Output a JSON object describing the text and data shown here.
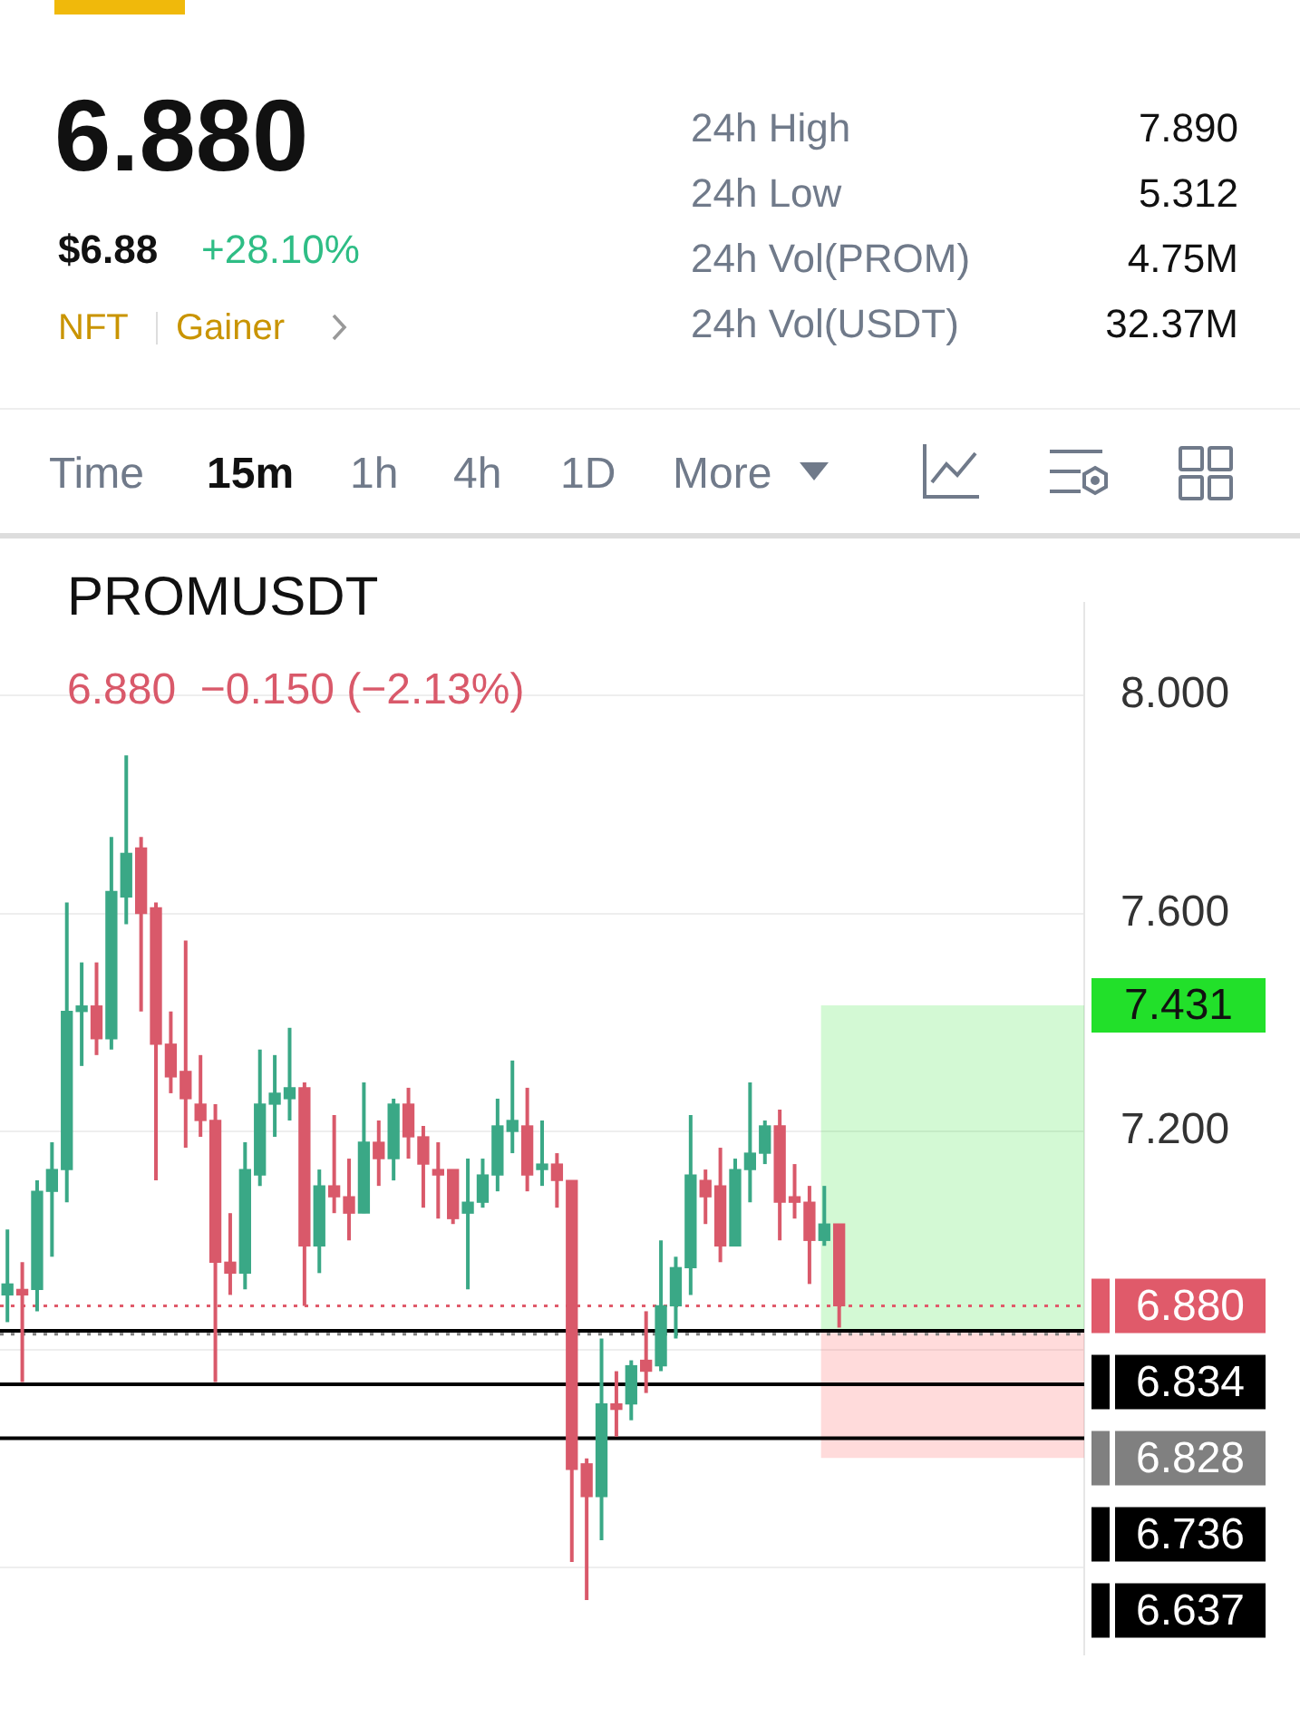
{
  "chart_data": [
    {
      "type": "other",
      "title": "6.880",
      "annotations": [
        "$6.88",
        "+28.10%",
        "NFT",
        "Gainer",
        "24h High",
        "7.890",
        "24h Low",
        "5.312",
        "24h Vol(PROM)",
        "4.75M",
        "24h Vol(USDT)",
        "32.37M",
        "Time",
        "15m",
        "1h",
        "4h",
        "1D",
        "More"
      ]
    },
    {
      "type": "candlestick",
      "title": "PROMUSDT",
      "subtitle": "6.880  −0.150 (−2.13%)",
      "categories": [
        null,
        null,
        null,
        null,
        null,
        null,
        null,
        null,
        null,
        null,
        null,
        null,
        null,
        null,
        null,
        null,
        null,
        null,
        null,
        null,
        null,
        null,
        null,
        null,
        null,
        null,
        null,
        null,
        null,
        null,
        null,
        null,
        null,
        null,
        null,
        null,
        null,
        null,
        null,
        null,
        null,
        null,
        null,
        null,
        null,
        null,
        null,
        null,
        null,
        null,
        null,
        null,
        null,
        null,
        null,
        null,
        null,
        null,
        null,
        null,
        null,
        null,
        null,
        null,
        null,
        null,
        null,
        null,
        null,
        null,
        null,
        null,
        null
      ],
      "ohlc": [
        [
          6.9,
          7.02,
          6.85,
          6.92
        ],
        [
          6.91,
          6.96,
          6.74,
          6.9
        ],
        [
          6.91,
          7.11,
          6.87,
          7.09
        ],
        [
          7.09,
          7.18,
          6.97,
          7.13
        ],
        [
          7.13,
          7.62,
          7.07,
          7.42
        ],
        [
          7.42,
          7.51,
          7.32,
          7.43
        ],
        [
          7.43,
          7.51,
          7.34,
          7.37
        ],
        [
          7.37,
          7.74,
          7.35,
          7.64
        ],
        [
          7.63,
          7.89,
          7.58,
          7.71
        ],
        [
          7.72,
          7.74,
          7.42,
          7.6
        ],
        [
          7.61,
          7.62,
          7.11,
          7.36
        ],
        [
          7.36,
          7.42,
          7.27,
          7.3
        ],
        [
          7.31,
          7.55,
          7.17,
          7.26
        ],
        [
          7.25,
          7.34,
          7.19,
          7.22
        ],
        [
          7.22,
          7.25,
          6.74,
          6.96
        ],
        [
          6.96,
          7.05,
          6.9,
          6.94
        ],
        [
          6.94,
          7.18,
          6.91,
          7.13
        ],
        [
          7.12,
          7.35,
          7.1,
          7.25
        ],
        [
          7.25,
          7.34,
          7.19,
          7.27
        ],
        [
          7.26,
          7.39,
          7.22,
          7.28
        ],
        [
          7.28,
          7.29,
          6.88,
          6.99
        ],
        [
          6.99,
          7.13,
          6.94,
          7.1
        ],
        [
          7.1,
          7.23,
          7.05,
          7.08
        ],
        [
          7.08,
          7.15,
          7.0,
          7.05
        ],
        [
          7.05,
          7.29,
          7.05,
          7.18
        ],
        [
          7.18,
          7.22,
          7.1,
          7.15
        ],
        [
          7.15,
          7.26,
          7.11,
          7.25
        ],
        [
          7.25,
          7.28,
          7.15,
          7.19
        ],
        [
          7.19,
          7.21,
          7.06,
          7.14
        ],
        [
          7.13,
          7.18,
          7.04,
          7.12
        ],
        [
          7.13,
          7.13,
          7.03,
          7.04
        ],
        [
          7.05,
          7.15,
          6.91,
          7.07
        ],
        [
          7.07,
          7.15,
          7.06,
          7.12
        ],
        [
          7.12,
          7.26,
          7.09,
          7.21
        ],
        [
          7.2,
          7.33,
          7.16,
          7.22
        ],
        [
          7.21,
          7.28,
          7.09,
          7.12
        ],
        [
          7.13,
          7.22,
          7.1,
          7.14
        ],
        [
          7.14,
          7.16,
          7.06,
          7.11
        ],
        [
          7.11,
          7.11,
          6.41,
          6.58
        ],
        [
          6.59,
          6.6,
          6.34,
          6.53
        ],
        [
          6.53,
          6.82,
          6.45,
          6.7
        ],
        [
          6.7,
          6.76,
          6.64,
          6.69
        ],
        [
          6.7,
          6.78,
          6.67,
          6.77
        ],
        [
          6.78,
          6.87,
          6.72,
          6.76
        ],
        [
          6.77,
          7.0,
          6.76,
          6.88
        ],
        [
          6.88,
          6.97,
          6.82,
          6.95
        ],
        [
          6.95,
          7.23,
          6.9,
          7.12
        ],
        [
          7.11,
          7.13,
          7.03,
          7.08
        ],
        [
          7.1,
          7.17,
          6.96,
          6.99
        ],
        [
          6.99,
          7.15,
          6.99,
          7.13
        ],
        [
          7.13,
          7.29,
          7.07,
          7.16
        ],
        [
          7.16,
          7.22,
          7.14,
          7.21
        ],
        [
          7.21,
          7.24,
          7.0,
          7.07
        ],
        [
          7.08,
          7.14,
          7.04,
          7.07
        ],
        [
          7.07,
          7.1,
          6.92,
          7.0
        ],
        [
          7.0,
          7.1,
          6.99,
          7.03
        ],
        [
          7.03,
          7.03,
          6.84,
          6.88
        ],
        null,
        null,
        null,
        null,
        null,
        null,
        null,
        null,
        null,
        null,
        null,
        null,
        null,
        null,
        null,
        null
      ],
      "ylim": [
        6.24,
        8.17
      ],
      "yticks": [
        {
          "value": 6.4,
          "label": null
        },
        {
          "value": 6.8,
          "label": null
        },
        {
          "value": 7.2,
          "label": "7.200"
        },
        {
          "value": 7.6,
          "label": "7.600"
        },
        {
          "value": 8.0,
          "label": "8.000"
        }
      ],
      "grid": "y",
      "legend": "right",
      "ref_lines": [
        {
          "axis": "y",
          "value": 6.88,
          "label": "6.880",
          "color": "#e05a6a",
          "line_style": "dotted"
        },
        {
          "axis": "y",
          "value": 6.834,
          "label": "6.834",
          "color": "#000000",
          "line_style": "solid"
        },
        {
          "axis": "y",
          "value": 6.828,
          "label": "6.828",
          "color": "#808080",
          "line_style": "dotted"
        },
        {
          "axis": "y",
          "value": 6.736,
          "label": "6.736",
          "color": "#000000",
          "line_style": "solid"
        },
        {
          "axis": "y",
          "value": 6.637,
          "label": "6.637",
          "color": "#000000",
          "line_style": "solid"
        }
      ],
      "bands": [
        {
          "axis": "y",
          "from": 6.834,
          "to": 7.431,
          "label": "7.431",
          "color": "#22e02a"
        },
        {
          "axis": "y",
          "from": 6.601,
          "to": 6.834,
          "label": null,
          "color": "#ff4a4a"
        }
      ]
    }
  ]
}
